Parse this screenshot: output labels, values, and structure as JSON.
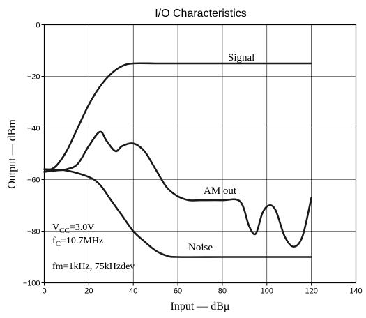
{
  "chart_data": {
    "type": "line",
    "title": "I/O Characteristics",
    "xlabel": "Input — dBμ",
    "ylabel": "Output — dBm",
    "xlim": [
      0,
      140
    ],
    "ylim": [
      -100,
      0
    ],
    "xticks": [
      "0",
      "20",
      "40",
      "60",
      "80",
      "100",
      "120",
      "140"
    ],
    "yticks": [
      "0",
      "−20",
      "−40",
      "−60",
      "−80",
      "−100"
    ],
    "grid": true,
    "series": [
      {
        "name": "Signal",
        "x": [
          0,
          5,
          10,
          15,
          20,
          25,
          30,
          35,
          40,
          50,
          60,
          80,
          100,
          120
        ],
        "y": [
          -57,
          -55,
          -49,
          -40,
          -31,
          -24,
          -19,
          -16,
          -15,
          -15,
          -15,
          -15,
          -15,
          -15
        ]
      },
      {
        "name": "AM out",
        "x": [
          0,
          5,
          10,
          15,
          20,
          25,
          28,
          32,
          35,
          40,
          45,
          50,
          55,
          60,
          65,
          70,
          80,
          88,
          92,
          95,
          98,
          101,
          104,
          108,
          112,
          116,
          120
        ],
        "y": [
          -57,
          -56.5,
          -56,
          -54,
          -47,
          -41.5,
          -45,
          -49,
          -47,
          -46,
          -49,
          -56,
          -63,
          -66.5,
          -68,
          -68,
          -68,
          -68.5,
          -78,
          -81,
          -73,
          -70,
          -72,
          -82,
          -86,
          -82,
          -67
        ]
      },
      {
        "name": "Noise",
        "x": [
          0,
          10,
          20,
          25,
          30,
          35,
          40,
          45,
          50,
          55,
          60,
          80,
          100,
          120
        ],
        "y": [
          -56,
          -56.5,
          -59,
          -62,
          -68,
          -74,
          -80,
          -84,
          -87.5,
          -89.5,
          -90,
          -90,
          -90,
          -90
        ]
      }
    ],
    "annotations": {
      "conditions": [
        "V_CC=3.0V",
        "f_C=10.7MHz",
        "fm=1kHz, 75kHzdev"
      ]
    }
  }
}
